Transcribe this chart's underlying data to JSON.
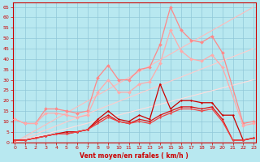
{
  "x": [
    0,
    1,
    2,
    3,
    4,
    5,
    6,
    7,
    8,
    9,
    10,
    11,
    12,
    13,
    14,
    15,
    16,
    17,
    18,
    19,
    20,
    21,
    22,
    23
  ],
  "series": [
    {
      "name": "diagonal1",
      "color": "#ffbbbb",
      "lw": 0.8,
      "marker": null,
      "values": [
        0,
        2.83,
        5.65,
        8.48,
        11.3,
        14.13,
        16.96,
        19.78,
        22.61,
        25.43,
        28.26,
        31.09,
        33.91,
        36.74,
        39.57,
        42.39,
        45.22,
        48.04,
        50.87,
        53.7,
        56.52,
        59.35,
        62.17,
        65.0
      ]
    },
    {
      "name": "diagonal2",
      "color": "#ffcccc",
      "lw": 0.8,
      "marker": null,
      "values": [
        0,
        1.96,
        3.91,
        5.87,
        7.83,
        9.78,
        11.74,
        13.7,
        15.65,
        17.61,
        19.57,
        21.52,
        23.48,
        25.43,
        27.39,
        29.35,
        31.3,
        33.26,
        35.22,
        37.17,
        39.13,
        41.09,
        43.04,
        45.0
      ]
    },
    {
      "name": "diagonal3",
      "color": "#ffdddd",
      "lw": 0.8,
      "marker": null,
      "values": [
        0,
        1.3,
        2.61,
        3.91,
        5.22,
        6.52,
        7.83,
        9.13,
        10.43,
        11.74,
        13.04,
        14.35,
        15.65,
        16.96,
        18.26,
        19.57,
        20.87,
        22.17,
        23.48,
        24.78,
        26.09,
        27.39,
        28.7,
        30.0
      ]
    },
    {
      "name": "line_light_pink_markers",
      "color": "#ff8888",
      "lw": 0.9,
      "marker": "D",
      "markersize": 2.0,
      "values": [
        11,
        9,
        9,
        16,
        16,
        15,
        14,
        15,
        31,
        37,
        30,
        30,
        35,
        36,
        47,
        65,
        54,
        49,
        48,
        51,
        43,
        null,
        9,
        10
      ]
    },
    {
      "name": "line_pink_markers2",
      "color": "#ffaaaa",
      "lw": 0.9,
      "marker": "D",
      "markersize": 2.0,
      "values": [
        11,
        9,
        9,
        14,
        14,
        13,
        12,
        13,
        24,
        30,
        24,
        24,
        28,
        29,
        38,
        54,
        44,
        40,
        39,
        42,
        36,
        null,
        8,
        9
      ]
    },
    {
      "name": "line_dark_red1",
      "color": "#cc0000",
      "lw": 0.9,
      "marker": ".",
      "markersize": 2.5,
      "values": [
        1,
        1,
        2,
        3,
        4,
        5,
        5,
        6,
        11,
        15,
        11,
        10,
        13,
        11,
        28,
        16,
        20,
        20,
        19,
        19,
        13,
        13,
        1,
        2
      ]
    },
    {
      "name": "line_dark_red2",
      "color": "#dd1111",
      "lw": 0.9,
      "marker": ".",
      "markersize": 2.5,
      "values": [
        1,
        1,
        2,
        3,
        4,
        4,
        5,
        6,
        10,
        13,
        10,
        9,
        11,
        10,
        13,
        15,
        17,
        17,
        16,
        17,
        11,
        1,
        1,
        2
      ]
    },
    {
      "name": "line_medium_red",
      "color": "#ee4444",
      "lw": 0.9,
      "marker": ".",
      "markersize": 2.5,
      "values": [
        1,
        1,
        2,
        3,
        4,
        4,
        5,
        6,
        9,
        12,
        10,
        9,
        10,
        9,
        12,
        14,
        16,
        16,
        15,
        16,
        10,
        1,
        1,
        2
      ]
    }
  ],
  "xlim": [
    -0.2,
    23.2
  ],
  "ylim": [
    0,
    67
  ],
  "yticks": [
    0,
    5,
    10,
    15,
    20,
    25,
    30,
    35,
    40,
    45,
    50,
    55,
    60,
    65
  ],
  "xticks": [
    0,
    1,
    2,
    3,
    4,
    5,
    6,
    7,
    8,
    9,
    10,
    11,
    12,
    13,
    14,
    15,
    16,
    17,
    18,
    19,
    20,
    21,
    22,
    23
  ],
  "xlabel": "Vent moyen/en rafales ( km/h )",
  "bg_color": "#b8e8f0",
  "grid_color": "#90c8d8",
  "tick_color": "#cc0000",
  "label_color": "#cc0000",
  "spine_color": "#cc0000"
}
